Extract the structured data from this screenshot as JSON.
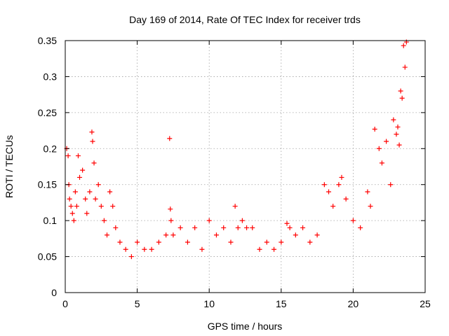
{
  "chart_data": {
    "type": "scatter",
    "title": "Day 169 of 2014, Rate Of TEC Index for receiver trds",
    "xlabel": "GPS time / hours",
    "ylabel": "ROTI / TECUs",
    "xlim": [
      0,
      25
    ],
    "ylim": [
      0,
      0.35
    ],
    "xticks": [
      0,
      5,
      10,
      15,
      20,
      25
    ],
    "xtick_labels": [
      "0",
      "5",
      "10",
      "15",
      "20",
      "25"
    ],
    "yticks": [
      0,
      0.05,
      0.1,
      0.15,
      0.2,
      0.25,
      0.3,
      0.35
    ],
    "ytick_labels": [
      "0",
      "0.05",
      "0.1",
      "0.15",
      "0.2",
      "0.25",
      "0.3",
      "0.35"
    ],
    "grid": true,
    "marker": "+",
    "marker_color": "#ff0000",
    "series": [
      {
        "name": "ROTI",
        "x": [
          0.1,
          0.2,
          0.25,
          0.3,
          0.4,
          0.5,
          0.6,
          0.7,
          0.8,
          0.9,
          1.0,
          1.2,
          1.4,
          1.5,
          1.7,
          1.85,
          1.9,
          2.0,
          2.1,
          2.3,
          2.5,
          2.7,
          2.9,
          3.1,
          3.3,
          3.5,
          3.8,
          4.2,
          4.6,
          5.0,
          5.5,
          6.0,
          6.5,
          7.0,
          7.25,
          7.3,
          7.35,
          7.5,
          8.0,
          8.5,
          9.0,
          9.5,
          10.0,
          10.5,
          11.0,
          11.5,
          11.8,
          12.0,
          12.3,
          12.6,
          13.0,
          13.5,
          14.0,
          14.5,
          15.0,
          15.4,
          15.6,
          16.0,
          16.5,
          17.0,
          17.5,
          18.0,
          18.3,
          18.6,
          19.0,
          19.2,
          19.5,
          20.0,
          20.5,
          21.0,
          21.2,
          21.5,
          21.8,
          22.0,
          22.3,
          22.6,
          22.8,
          23.0,
          23.1,
          23.2,
          23.3,
          23.4,
          23.5,
          23.6,
          23.7
        ],
        "y": [
          0.2,
          0.19,
          0.15,
          0.13,
          0.12,
          0.11,
          0.1,
          0.14,
          0.12,
          0.19,
          0.16,
          0.17,
          0.13,
          0.11,
          0.14,
          0.223,
          0.21,
          0.18,
          0.13,
          0.15,
          0.12,
          0.1,
          0.08,
          0.14,
          0.12,
          0.09,
          0.07,
          0.06,
          0.05,
          0.07,
          0.06,
          0.06,
          0.07,
          0.08,
          0.214,
          0.116,
          0.1,
          0.08,
          0.09,
          0.07,
          0.09,
          0.06,
          0.1,
          0.08,
          0.09,
          0.07,
          0.12,
          0.09,
          0.1,
          0.09,
          0.09,
          0.06,
          0.07,
          0.06,
          0.07,
          0.096,
          0.09,
          0.08,
          0.09,
          0.07,
          0.08,
          0.15,
          0.14,
          0.12,
          0.15,
          0.16,
          0.13,
          0.1,
          0.09,
          0.14,
          0.12,
          0.227,
          0.2,
          0.18,
          0.21,
          0.15,
          0.24,
          0.22,
          0.23,
          0.205,
          0.28,
          0.27,
          0.343,
          0.313,
          0.348
        ]
      }
    ]
  }
}
